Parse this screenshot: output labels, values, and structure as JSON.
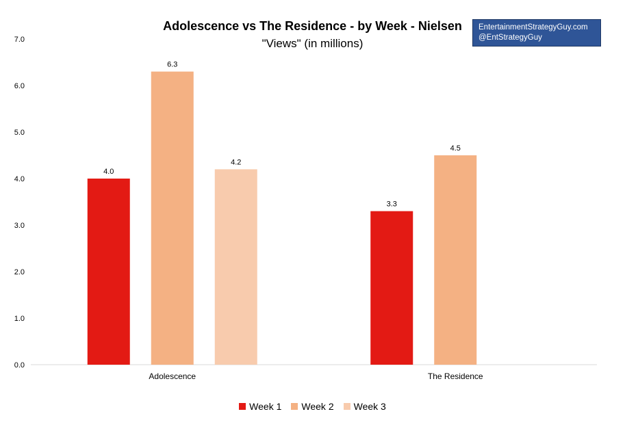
{
  "chart_data": {
    "type": "bar",
    "title": "Adolescence vs The Residence - by Week - Nielsen",
    "subtitle": "\"Views\" (in millions)",
    "categories": [
      "Adolescence",
      "The Residence"
    ],
    "series": [
      {
        "name": "Week 1",
        "values": [
          4.0,
          3.3
        ],
        "labels": [
          "4.0",
          "3.3"
        ],
        "color": "#e31a14"
      },
      {
        "name": "Week 2",
        "values": [
          6.3,
          4.5
        ],
        "labels": [
          "6.3",
          "4.5"
        ],
        "color": "#f4b183"
      },
      {
        "name": "Week 3",
        "values": [
          4.2,
          null
        ],
        "labels": [
          "4.2",
          null
        ],
        "color": "#f8cbad"
      }
    ],
    "ylim": [
      0,
      7
    ],
    "yticks": [
      "0.0",
      "1.0",
      "2.0",
      "3.0",
      "4.0",
      "5.0",
      "6.0",
      "7.0"
    ],
    "xlabel": "",
    "ylabel": "",
    "grid": false,
    "legend_position": "bottom"
  },
  "brand": {
    "line1": "EntertainmentStrategyGuy.com",
    "line2": "@EntStrategyGuy",
    "color": "#2f5597"
  }
}
